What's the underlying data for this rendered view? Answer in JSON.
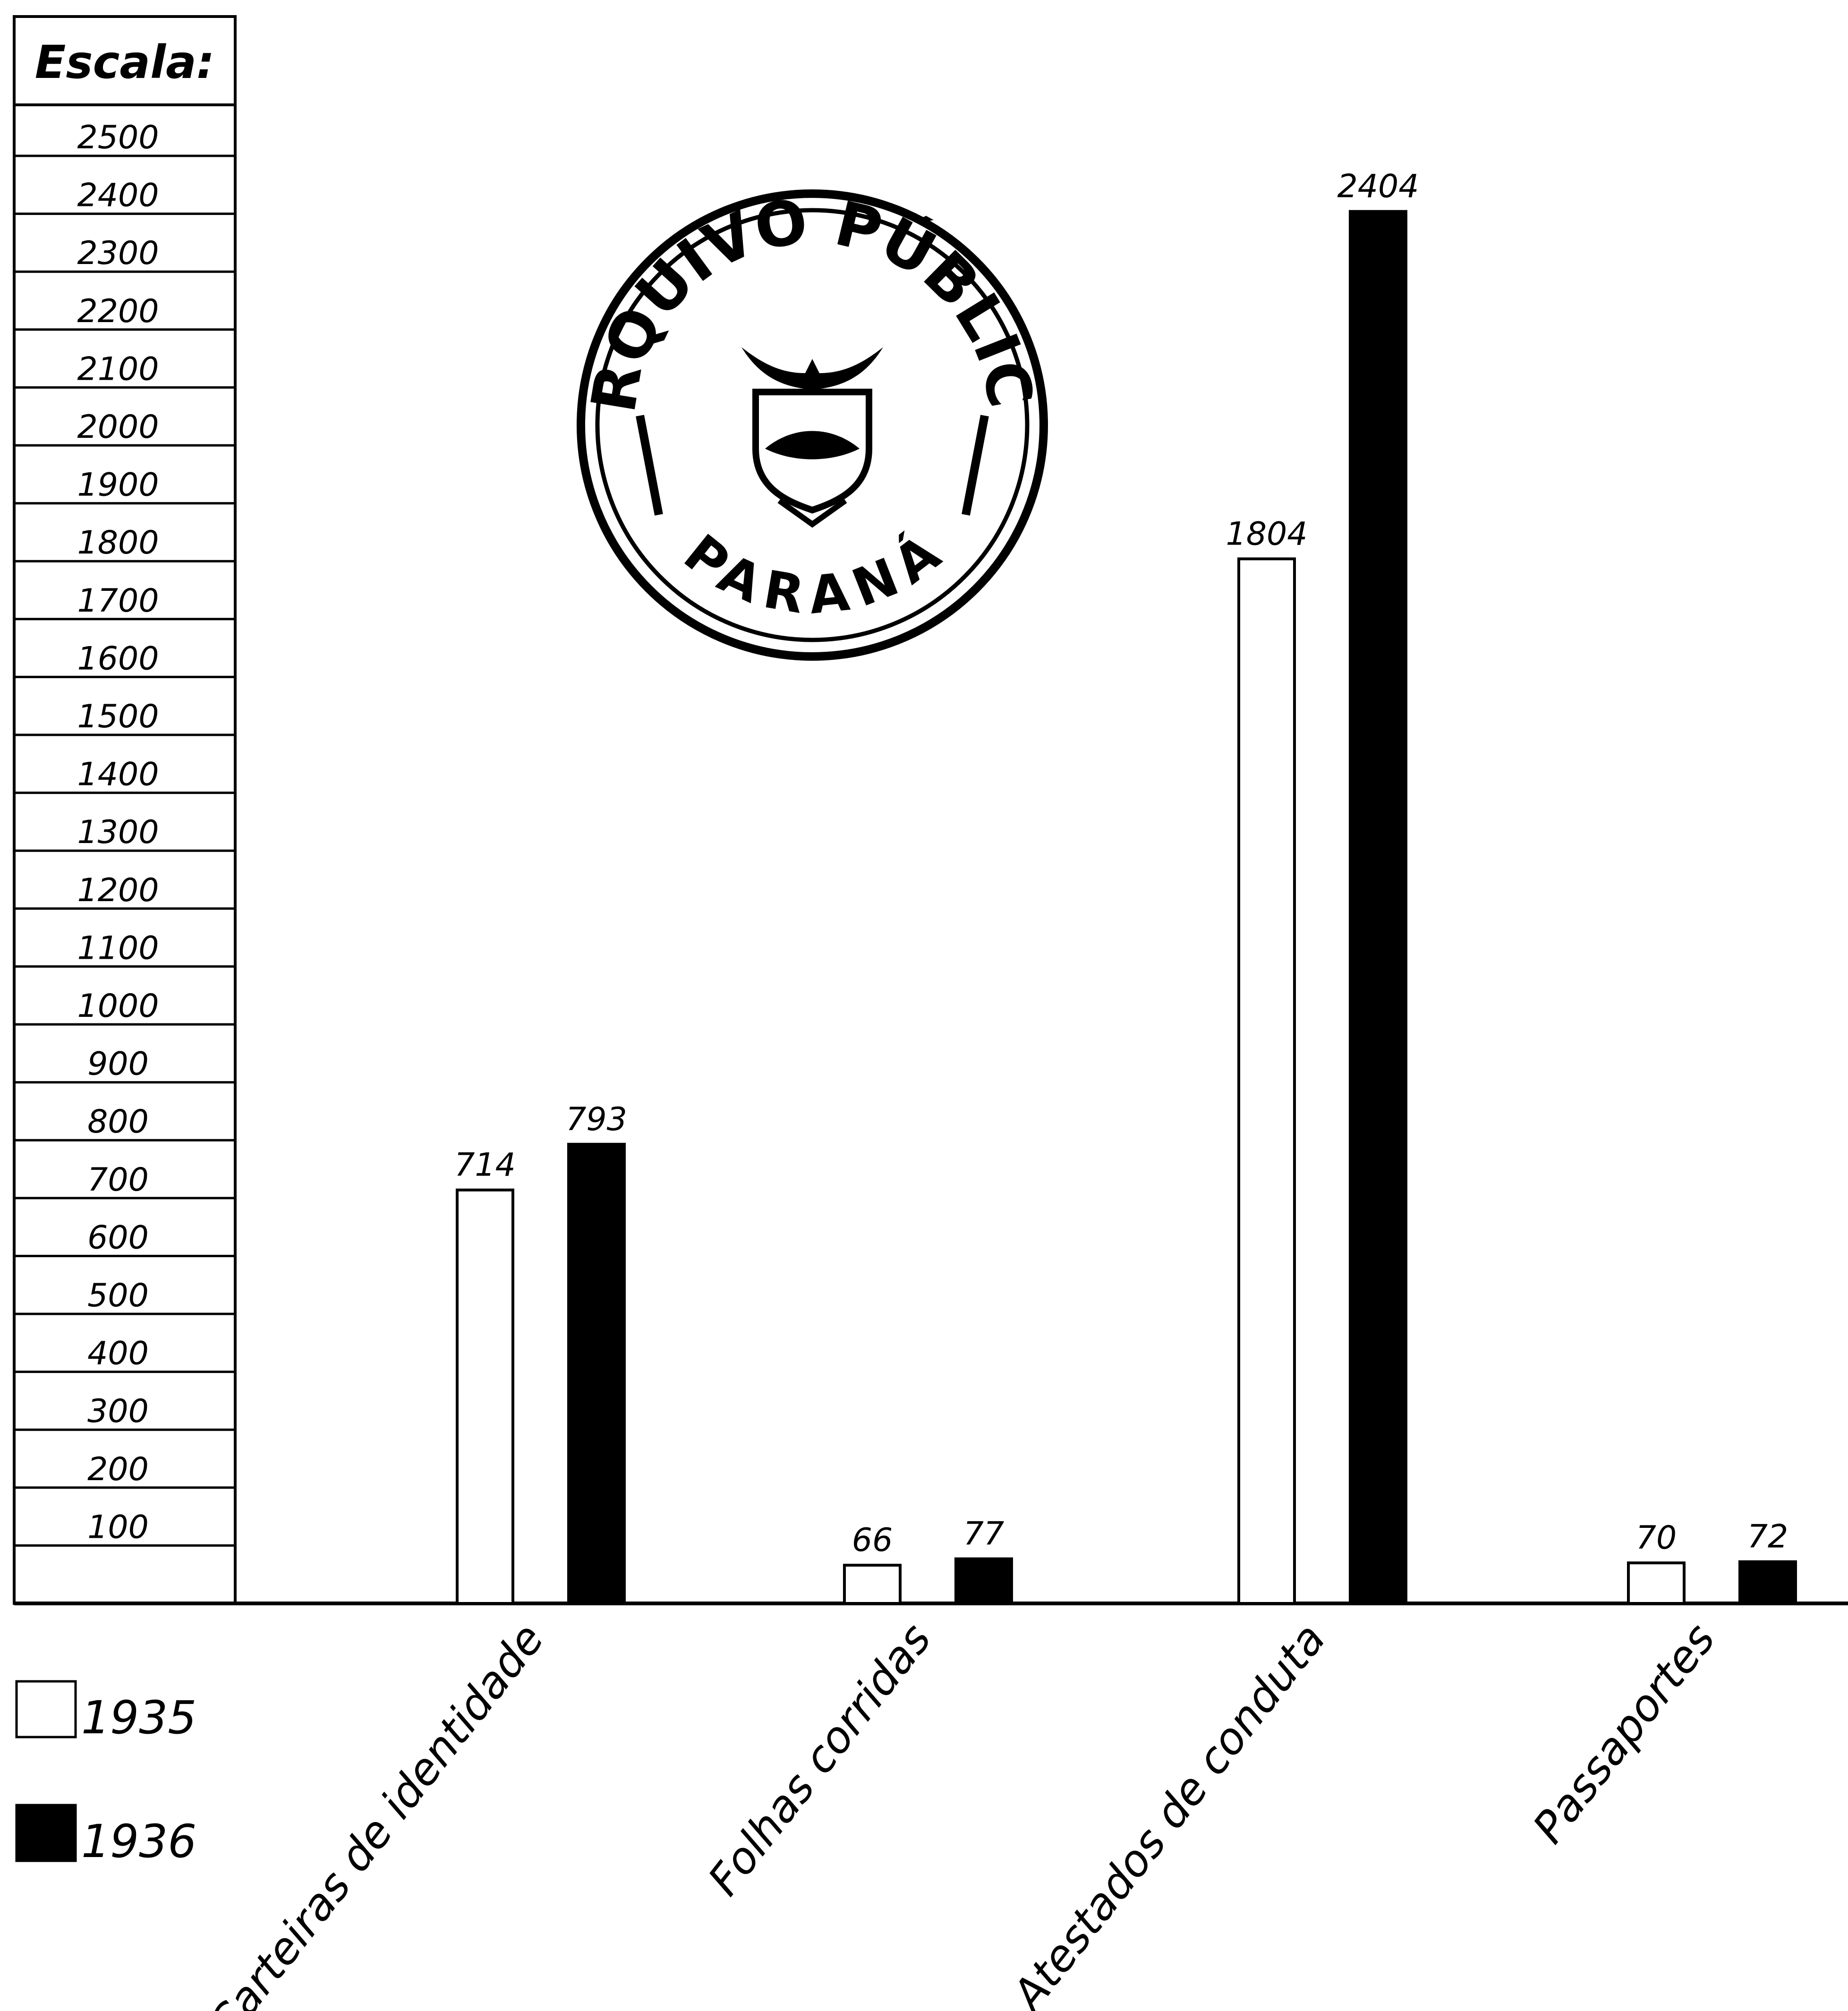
{
  "chart_data": {
    "type": "bar",
    "scale_title": "Escala:",
    "categories": [
      "Carteiras de identidade",
      "Folhas corridas",
      "Atestados de conduta",
      "Passaportes"
    ],
    "series": [
      {
        "name": "1935",
        "values": [
          714,
          66,
          1804,
          70
        ],
        "fill": "#ffffff"
      },
      {
        "name": "1936",
        "values": [
          793,
          77,
          2404,
          72
        ],
        "fill": "#000000"
      }
    ],
    "data_labels": [
      [
        "714",
        "66",
        "1804",
        "70"
      ],
      [
        "793",
        "77",
        "2404",
        "72"
      ]
    ],
    "ylim": [
      0,
      2500
    ],
    "yticks": [
      100,
      200,
      300,
      400,
      500,
      600,
      700,
      800,
      900,
      1000,
      1100,
      1200,
      1300,
      1400,
      1500,
      1600,
      1700,
      1800,
      1900,
      2000,
      2100,
      2200,
      2300,
      2400,
      2500
    ],
    "ytick_labels": [
      "100",
      "200",
      "300",
      "400",
      "500",
      "600",
      "700",
      "800",
      "900",
      "1000",
      "1100",
      "1200",
      "1300",
      "1400",
      "1500",
      "1600",
      "1700",
      "1800",
      "1900",
      "2000",
      "2100",
      "2200",
      "2300",
      "2400",
      "2500"
    ],
    "legend": {
      "position": "bottom-left",
      "entries": [
        "1935",
        "1936"
      ]
    },
    "grid": false
  },
  "stamp": {
    "top_text": "ARQUIVO PÚBLICO",
    "bottom_text": "PARANÁ"
  },
  "colors": {
    "ink": "#000000",
    "paper": "#ffffff"
  }
}
